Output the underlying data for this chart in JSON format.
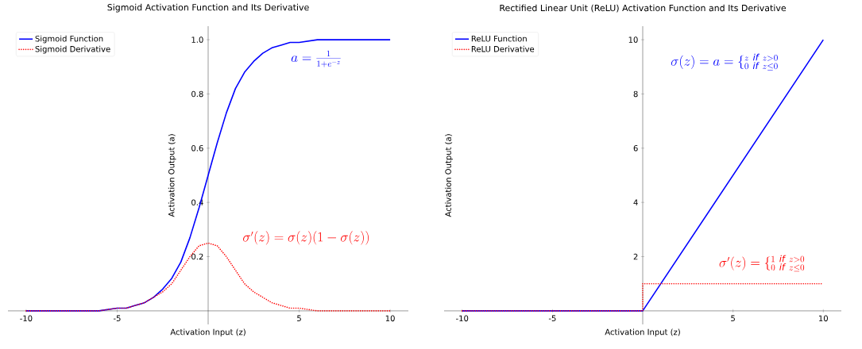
{
  "chart_data": [
    {
      "type": "line",
      "title": "Sigmoid Activation Function and Its Derivative",
      "xlabel": "Activation Input (z)",
      "ylabel": "Activation Output (a)",
      "x": [
        -10,
        -8,
        -6,
        -5,
        -4.5,
        -4,
        -3.5,
        -3,
        -2.5,
        -2,
        -1.5,
        -1,
        -0.5,
        0,
        0.5,
        1,
        1.5,
        2,
        2.5,
        3,
        3.5,
        4,
        4.5,
        5,
        6,
        8,
        10
      ],
      "series": [
        {
          "name": "Sigmoid Function",
          "color": "#0000ff",
          "line_style": "solid",
          "values": [
            0.0,
            0.0,
            0.0,
            0.01,
            0.01,
            0.02,
            0.03,
            0.05,
            0.08,
            0.12,
            0.18,
            0.27,
            0.38,
            0.5,
            0.62,
            0.73,
            0.82,
            0.88,
            0.92,
            0.95,
            0.97,
            0.98,
            0.99,
            0.99,
            1.0,
            1.0,
            1.0
          ]
        },
        {
          "name": "Sigmoid Derivative",
          "color": "#ff0000",
          "line_style": "dotted",
          "values": [
            0.0,
            0.0,
            0.0,
            0.01,
            0.01,
            0.02,
            0.03,
            0.05,
            0.07,
            0.1,
            0.15,
            0.2,
            0.24,
            0.25,
            0.24,
            0.2,
            0.15,
            0.1,
            0.07,
            0.05,
            0.03,
            0.02,
            0.01,
            0.01,
            0.0,
            0.0,
            0.0
          ]
        }
      ],
      "xlim": [
        -11,
        11
      ],
      "ylim": [
        -0.05,
        1.05
      ],
      "xticks": [
        -10,
        -5,
        5,
        10
      ],
      "yticks": [
        0.2,
        0.4,
        0.6,
        0.8,
        {
          "value": 1,
          "label": "1.0"
        }
      ],
      "legend": "top left",
      "grid": false,
      "marker": "none",
      "annotations": [
        "a = \\frac{1}{1+e^{-z}}",
        "\\sigma'(z) = \\sigma(z)(1-\\sigma(z))"
      ]
    },
    {
      "type": "line",
      "title": "Rectified Linear Unit (ReLU) Activation Function and Its Derivative",
      "xlabel": "Activation Input (z)",
      "ylabel": "Activation Output (a)",
      "series": [
        {
          "name": "ReLU Function",
          "color": "#0000ff",
          "line_style": "solid",
          "x": [
            -10,
            0,
            10
          ],
          "values": [
            0,
            0,
            10
          ]
        },
        {
          "name": "ReLU Derivative",
          "color": "#ff0000",
          "line_style": "dotted",
          "x": [
            -10,
            0,
            0,
            10
          ],
          "values": [
            0,
            0,
            1,
            1
          ]
        }
      ],
      "xlim": [
        -11,
        11
      ],
      "ylim": [
        -0.5,
        10.5
      ],
      "xticks": [
        -10,
        -5,
        5,
        10
      ],
      "yticks": [
        2,
        4,
        6,
        8,
        10
      ],
      "legend": "top left",
      "grid": false,
      "marker": "none",
      "annotations": [
        "\\sigma(z) = a = \\{^{z\\ \\mathit{if}\\ z>0}_{0\\ \\mathit{if}\\ z\\leq 0}",
        "\\sigma'(z) = \\{^{1\\ \\mathit{if}\\ z>0}_{0\\ \\mathit{if}\\ z\\leq 0}"
      ]
    }
  ]
}
